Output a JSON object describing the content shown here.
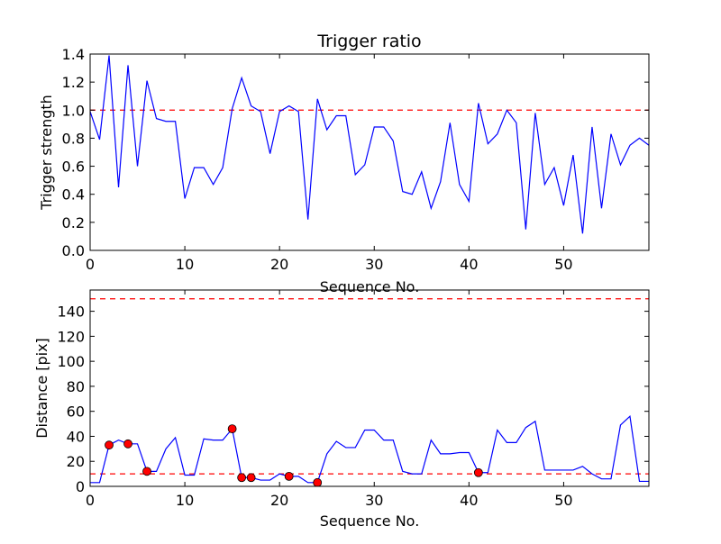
{
  "chart_data": [
    {
      "type": "line",
      "title": "Trigger ratio",
      "xlabel": "Sequence No.",
      "ylabel": "Trigger strength",
      "xlim": [
        0,
        59
      ],
      "ylim": [
        0,
        1.4
      ],
      "xticks": [
        "0",
        "10",
        "20",
        "30",
        "40",
        "50"
      ],
      "yticks": [
        "0.0",
        "0.2",
        "0.4",
        "0.6",
        "0.8",
        "1.0",
        "1.2",
        "1.4"
      ],
      "xtick_values": [
        0,
        10,
        20,
        30,
        40,
        50
      ],
      "ytick_values": [
        0,
        0.2,
        0.4,
        0.6,
        0.8,
        1.0,
        1.2,
        1.4
      ],
      "threshold": 1.0,
      "line_color": "#0000ff",
      "threshold_color": "#ff0000",
      "grid": false,
      "series": [
        {
          "x": [
            0,
            1,
            2,
            3,
            4,
            5,
            6,
            7,
            8,
            9,
            10,
            11,
            12,
            13,
            14,
            15,
            16,
            17,
            18,
            19,
            20,
            21,
            22,
            23,
            24,
            25,
            26,
            27,
            28,
            29,
            30,
            31,
            32,
            33,
            34,
            35,
            36,
            37,
            38,
            39,
            40,
            41,
            42,
            43,
            44,
            45,
            46,
            47,
            48,
            49,
            50,
            51,
            52,
            53,
            54,
            55,
            56,
            57,
            58,
            59
          ],
          "values": [
            0.99,
            0.79,
            1.39,
            0.45,
            1.32,
            0.6,
            1.21,
            0.94,
            0.92,
            0.92,
            0.37,
            0.59,
            0.59,
            0.47,
            0.59,
            1.01,
            1.23,
            1.03,
            0.99,
            0.69,
            0.99,
            1.03,
            0.99,
            0.22,
            1.08,
            0.86,
            0.96,
            0.96,
            0.54,
            0.61,
            0.88,
            0.88,
            0.78,
            0.42,
            0.4,
            0.56,
            0.3,
            0.49,
            0.91,
            0.47,
            0.35,
            1.05,
            0.76,
            0.83,
            1.0,
            0.91,
            0.15,
            0.98,
            0.47,
            0.59,
            0.32,
            0.68,
            0.12,
            0.88,
            0.3,
            0.83,
            0.61,
            0.75,
            0.8,
            0.75
          ]
        }
      ]
    },
    {
      "type": "line",
      "title": "",
      "xlabel": "Sequence No.",
      "ylabel": "Distance [pix]",
      "xlim": [
        0,
        59
      ],
      "ylim": [
        0,
        157
      ],
      "xticks": [
        "0",
        "10",
        "20",
        "30",
        "40",
        "50"
      ],
      "yticks": [
        "0",
        "20",
        "40",
        "60",
        "80",
        "100",
        "120",
        "140"
      ],
      "xtick_values": [
        0,
        10,
        20,
        30,
        40,
        50
      ],
      "ytick_values": [
        0,
        20,
        40,
        60,
        80,
        100,
        120,
        140
      ],
      "thresholds": [
        10,
        150
      ],
      "line_color": "#0000ff",
      "threshold_color": "#ff0000",
      "marker_color": "#ff0000",
      "grid": false,
      "series": [
        {
          "x": [
            0,
            1,
            2,
            3,
            4,
            5,
            6,
            7,
            8,
            9,
            10,
            11,
            12,
            13,
            14,
            15,
            16,
            17,
            18,
            19,
            20,
            21,
            22,
            23,
            24,
            25,
            26,
            27,
            28,
            29,
            30,
            31,
            32,
            33,
            34,
            35,
            36,
            37,
            38,
            39,
            40,
            41,
            42,
            43,
            44,
            45,
            46,
            47,
            48,
            49,
            50,
            51,
            52,
            53,
            54,
            55,
            56,
            57,
            58,
            59
          ],
          "values": [
            3,
            3,
            33,
            37,
            34,
            34,
            12,
            12,
            30,
            39,
            9,
            9,
            38,
            37,
            37,
            46,
            7,
            7,
            5,
            5,
            10,
            8,
            8,
            3,
            3,
            26,
            36,
            31,
            31,
            45,
            45,
            37,
            37,
            12,
            10,
            10,
            37,
            26,
            26,
            27,
            27,
            11,
            11,
            45,
            35,
            35,
            47,
            52,
            13,
            13,
            13,
            13,
            16,
            10,
            6,
            6,
            49,
            56,
            4,
            4
          ]
        },
        {
          "x": [
            2,
            4,
            6,
            15,
            16,
            17,
            21,
            24,
            41
          ],
          "values": [
            33,
            34,
            12,
            46,
            7,
            7,
            8,
            3,
            11
          ]
        }
      ]
    }
  ]
}
